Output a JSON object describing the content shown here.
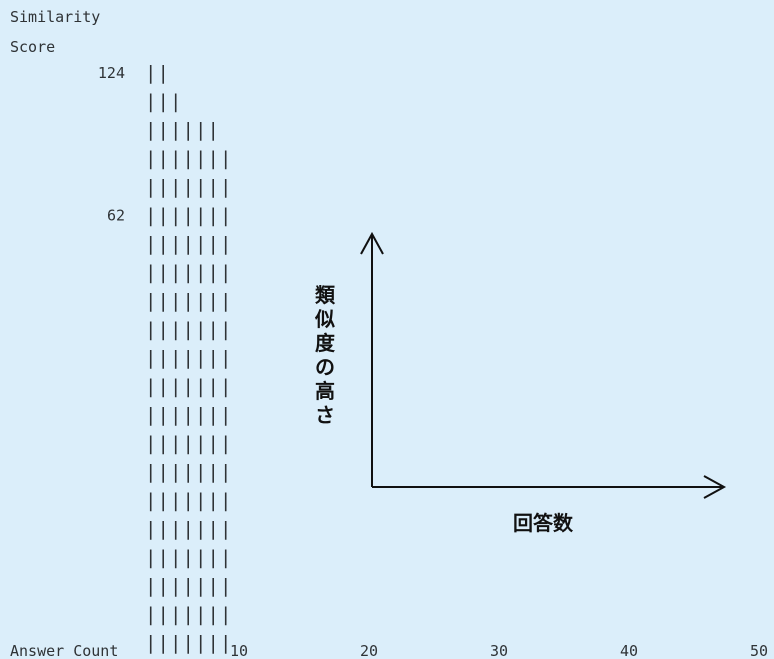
{
  "chart_data": {
    "type": "bar",
    "ylabel_lines": [
      "Similarity",
      "Score"
    ],
    "xlabel": "Answer Count",
    "y_ticks": [
      {
        "value": 124,
        "label": "124"
      },
      {
        "value": 62,
        "label": "62"
      }
    ],
    "x_ticks": [
      {
        "value": 10,
        "label": "10"
      },
      {
        "value": 20,
        "label": "20"
      },
      {
        "value": 30,
        "label": "30"
      },
      {
        "value": 40,
        "label": "40"
      },
      {
        "value": 50,
        "label": "50"
      }
    ],
    "xlim": [
      0,
      50
    ],
    "ylim": [
      0,
      124
    ],
    "x": [
      1,
      2,
      3,
      4,
      5,
      6,
      7
    ],
    "values": [
      124,
      118,
      107,
      96,
      96,
      96,
      85
    ],
    "bar_glyph": "|",
    "annotation": {
      "y_axis_label": "類似度の高さ",
      "x_axis_label": "回答数"
    },
    "grid": false,
    "legend": "none"
  }
}
